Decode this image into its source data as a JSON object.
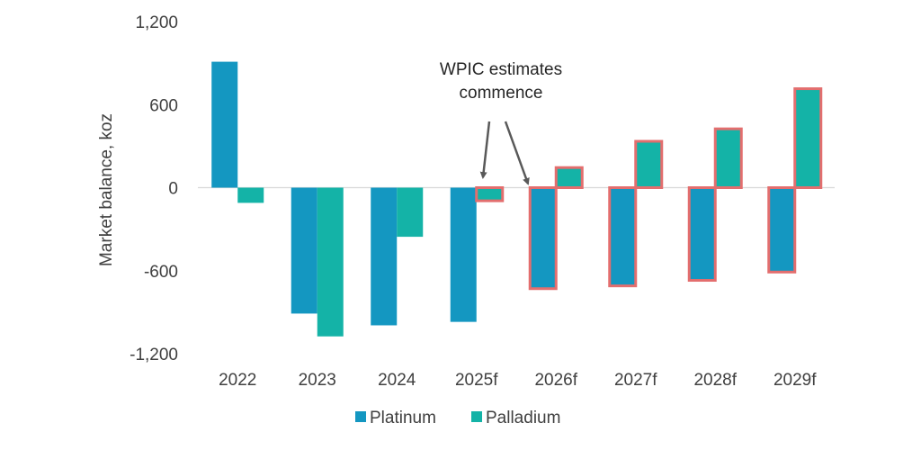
{
  "chart_data": {
    "type": "bar",
    "categories": [
      "2022",
      "2023",
      "2024",
      "2025f",
      "2026f",
      "2027f",
      "2028f",
      "2029f"
    ],
    "series": [
      {
        "name": "Platinum",
        "values": [
          910,
          -910,
          -995,
          -970,
          -730,
          -710,
          -670,
          -610
        ]
      },
      {
        "name": "Palladium",
        "values": [
          -110,
          -1075,
          -355,
          -95,
          145,
          335,
          425,
          715
        ]
      }
    ],
    "highlighted": [
      {
        "category": "2025f",
        "series": "Palladium"
      },
      {
        "category": "2026f",
        "series": "Platinum"
      },
      {
        "category": "2026f",
        "series": "Palladium"
      },
      {
        "category": "2027f",
        "series": "Platinum"
      },
      {
        "category": "2027f",
        "series": "Palladium"
      },
      {
        "category": "2028f",
        "series": "Platinum"
      },
      {
        "category": "2028f",
        "series": "Palladium"
      },
      {
        "category": "2029f",
        "series": "Platinum"
      },
      {
        "category": "2029f",
        "series": "Palladium"
      }
    ],
    "ylabel": "Market balance, koz",
    "xlabel": "",
    "ylim": [
      -1200,
      1200
    ],
    "yticks": [
      1200,
      600,
      0,
      -600,
      -1200
    ],
    "ytick_labels": [
      "1,200",
      "600",
      "0",
      "-600",
      "-1,200"
    ],
    "grid": false,
    "legend_position": "bottom",
    "annotation": {
      "lines": [
        "WPIC estimates",
        "commence"
      ],
      "points_to": [
        "2025f",
        "2026f"
      ]
    },
    "colors": {
      "platinum": "#1497C1",
      "palladium": "#14B3A7",
      "highlight_border": "#E36E6E",
      "arrow": "#595959",
      "zero_line": "#D9D9D9"
    }
  }
}
